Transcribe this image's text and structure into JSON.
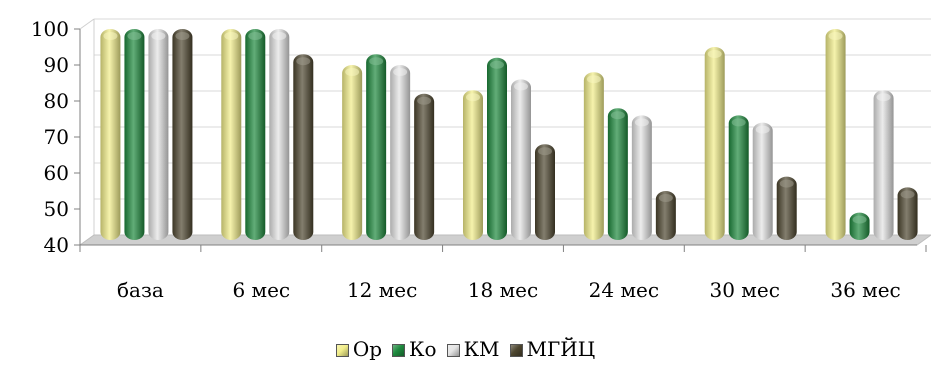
{
  "chart_data": {
    "type": "bar",
    "categories": [
      "база",
      "6 мес",
      "12 мес",
      "18 мес",
      "24 мес",
      "30 мес",
      "36 мес"
    ],
    "series": [
      {
        "name": "Ор",
        "color": "#f2ee8a",
        "values": [
          100,
          100,
          90,
          83,
          88,
          95,
          100
        ]
      },
      {
        "name": "Ко",
        "color": "#1e8a3e",
        "values": [
          100,
          100,
          93,
          92,
          78,
          76,
          49
        ]
      },
      {
        "name": "КМ",
        "color": "#e4e4e4",
        "values": [
          100,
          100,
          90,
          86,
          76,
          74,
          83
        ]
      },
      {
        "name": "МГЙЦ",
        "color": "#4e4730",
        "values": [
          100,
          93,
          82,
          68,
          55,
          59,
          56
        ]
      }
    ],
    "ylim": [
      40,
      100
    ],
    "yticks": [
      40,
      50,
      60,
      70,
      80,
      90,
      100
    ],
    "grid": true,
    "legend_position": "bottom"
  }
}
